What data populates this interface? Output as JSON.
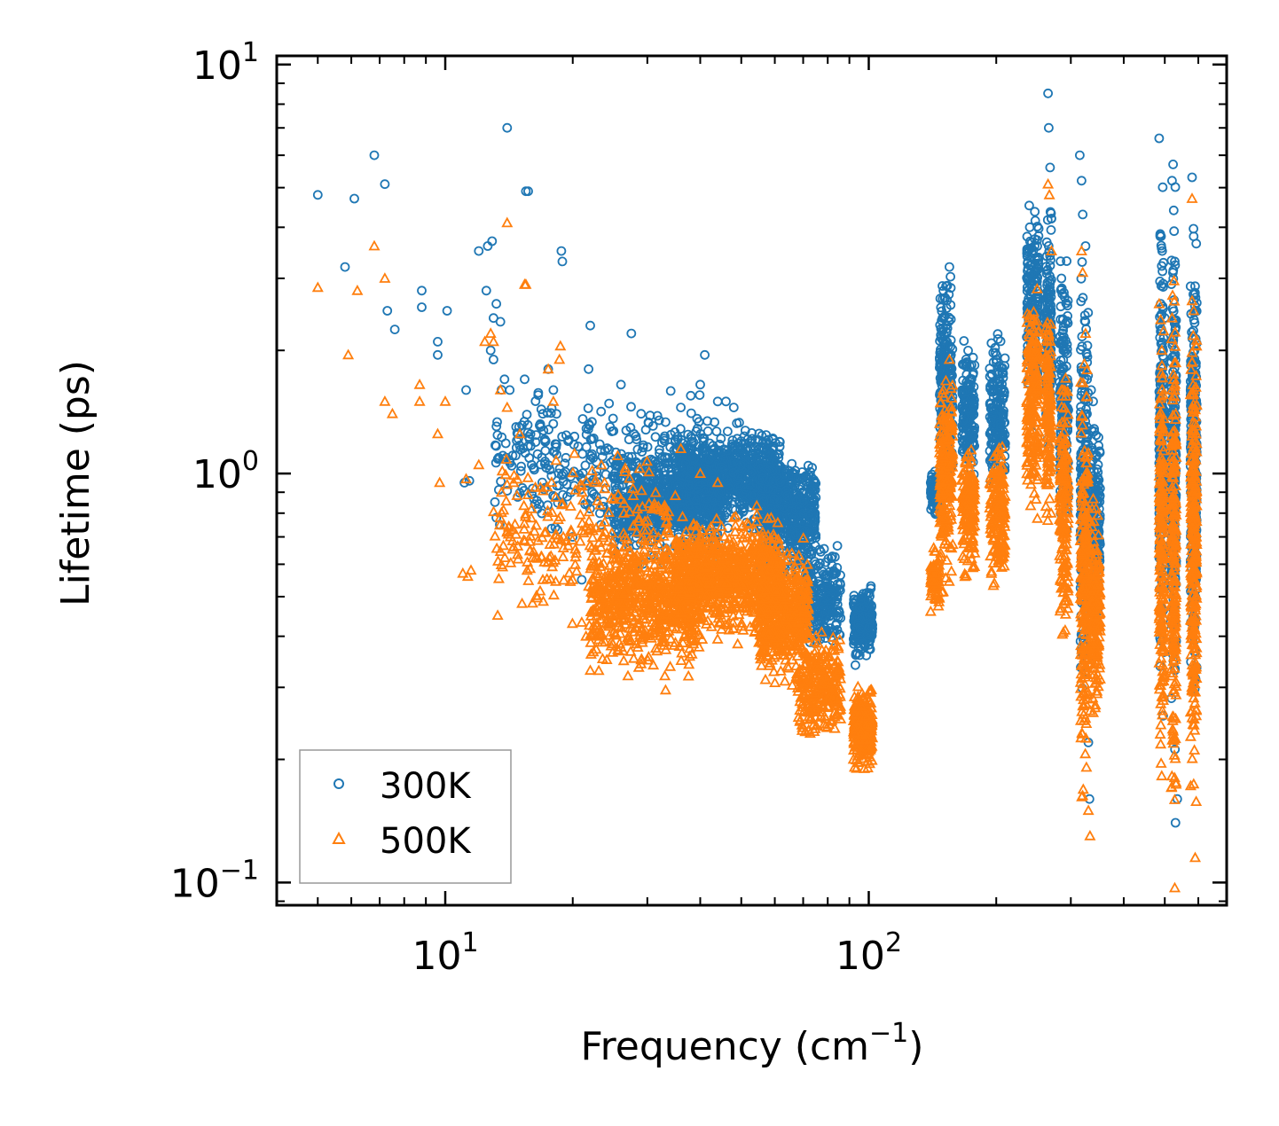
{
  "chart_data": {
    "type": "scatter",
    "xscale": "log",
    "yscale": "log",
    "xlim": [
      4,
      700
    ],
    "ylim": [
      0.088,
      10.5
    ],
    "xlabel_base": "Frequency (cm",
    "xlabel_sup": "−1",
    "xlabel_end": ")",
    "ylabel": "Lifetime (ps)",
    "x_ticks": [
      {
        "value": 10,
        "base": "10",
        "exp": "1"
      },
      {
        "value": 100,
        "base": "10",
        "exp": "2"
      }
    ],
    "y_ticks": [
      {
        "value": 0.1,
        "base": "10",
        "exp": "−1"
      },
      {
        "value": 1,
        "base": "10",
        "exp": "0"
      },
      {
        "value": 10,
        "base": "10",
        "exp": "1"
      }
    ],
    "legend_position": "lower-left",
    "series": [
      {
        "name": "300K",
        "marker": "circle",
        "color": "#1f77b4",
        "points": [
          [
            5.0,
            4.8
          ],
          [
            5.8,
            3.2
          ],
          [
            6.1,
            4.7
          ],
          [
            6.8,
            6.0
          ],
          [
            7.2,
            5.1
          ],
          [
            7.3,
            2.5
          ],
          [
            7.6,
            2.25
          ],
          [
            8.8,
            2.8
          ],
          [
            8.8,
            2.55
          ],
          [
            10.1,
            2.5
          ],
          [
            9.6,
            2.1
          ],
          [
            9.6,
            1.95
          ],
          [
            11.1,
            0.95
          ],
          [
            11.4,
            0.96
          ],
          [
            11.2,
            1.6
          ],
          [
            12.0,
            3.5
          ],
          [
            12.6,
            3.6
          ],
          [
            12.9,
            3.7
          ],
          [
            12.5,
            2.8
          ],
          [
            13.2,
            2.6
          ],
          [
            13.0,
            2.4
          ],
          [
            13.5,
            2.35
          ],
          [
            12.8,
            2.0
          ],
          [
            13.0,
            1.9
          ],
          [
            13.8,
            1.7
          ],
          [
            14.0,
            7.0
          ],
          [
            14.2,
            1.6
          ],
          [
            14.7,
            1.3
          ],
          [
            13.2,
            0.78
          ],
          [
            15.5,
            4.9
          ],
          [
            15.7,
            4.9
          ],
          [
            15.4,
            1.7
          ],
          [
            16.8,
            1.3
          ],
          [
            16.0,
            1.05
          ],
          [
            16.5,
            0.82
          ],
          [
            17.0,
            1.4
          ],
          [
            17.5,
            1.8
          ],
          [
            18.8,
            3.5
          ],
          [
            18.9,
            3.3
          ],
          [
            18.0,
            1.6
          ],
          [
            19.5,
            1.2
          ],
          [
            19.0,
            1.0
          ],
          [
            20.0,
            0.7
          ],
          [
            21.0,
            0.55
          ],
          [
            21.8,
            1.8
          ],
          [
            22.0,
            2.3
          ],
          [
            23.5,
            1.1
          ],
          [
            24.5,
            1.3
          ],
          [
            26.0,
            1.65
          ],
          [
            27.5,
            2.2
          ],
          [
            29.0,
            1.4
          ],
          [
            32.0,
            1.35
          ],
          [
            36.0,
            1.45
          ],
          [
            38.0,
            1.55
          ],
          [
            40.0,
            1.65
          ],
          [
            41.0,
            1.95
          ],
          [
            44.0,
            1.5
          ],
          [
            46.0,
            1.5
          ],
          [
            48.0,
            1.45
          ],
          [
            50.0,
            1.2
          ],
          [
            55.0,
            1.15
          ],
          [
            60.0,
            1.1
          ],
          [
            64.0,
            1.0
          ],
          [
            66.0,
            0.98
          ],
          [
            70.0,
            0.8
          ],
          [
            75.0,
            0.6
          ],
          [
            80.0,
            0.5
          ],
          [
            84.0,
            0.43
          ],
          [
            93.0,
            0.34
          ],
          [
            96.0,
            0.5
          ],
          [
            100.0,
            0.42
          ],
          [
            140.0,
            0.95
          ],
          [
            150.0,
            2.8
          ],
          [
            155.0,
            3.2
          ],
          [
            170.0,
            1.85
          ],
          [
            200.0,
            1.9
          ],
          [
            205.0,
            1.3
          ],
          [
            240.0,
            4.0
          ],
          [
            250.0,
            3.6
          ],
          [
            265.0,
            8.5
          ],
          [
            266.0,
            7.0
          ],
          [
            268.0,
            5.6
          ],
          [
            270.0,
            4.2
          ],
          [
            285.0,
            3.0
          ],
          [
            290.0,
            2.7
          ],
          [
            295.0,
            1.6
          ],
          [
            315.0,
            6.0
          ],
          [
            318.0,
            5.2
          ],
          [
            320.0,
            4.3
          ],
          [
            325.0,
            3.6
          ],
          [
            330.0,
            0.22
          ],
          [
            332.0,
            0.16
          ],
          [
            335.0,
            1.6
          ],
          [
            340.0,
            0.85
          ],
          [
            345.0,
            1.1
          ],
          [
            485.0,
            6.6
          ],
          [
            490.0,
            3.8
          ],
          [
            493.0,
            3.5
          ],
          [
            500.0,
            2.4
          ],
          [
            520.0,
            5.2
          ],
          [
            523.0,
            5.7
          ],
          [
            525.0,
            4.4
          ],
          [
            528.0,
            3.3
          ],
          [
            530.0,
            0.14
          ],
          [
            535.0,
            0.16
          ],
          [
            580.0,
            5.3
          ],
          [
            585.0,
            3.8
          ],
          [
            590.0,
            2.5
          ]
        ],
        "clusters": [
          {
            "x_range": [
              13,
              40
            ],
            "y_center": 1.05,
            "y_spread": 1.45,
            "count": 320
          },
          {
            "x_range": [
              25,
              45
            ],
            "y_center": 0.85,
            "y_spread": 1.3,
            "count": 700
          },
          {
            "x_range": [
              35,
              62
            ],
            "y_center": 0.98,
            "y_spread": 1.25,
            "count": 900
          },
          {
            "x_range": [
              55,
              75
            ],
            "y_center": 0.8,
            "y_spread": 1.3,
            "count": 500
          },
          {
            "x_range": [
              70,
              86
            ],
            "y_center": 0.5,
            "y_spread": 1.25,
            "count": 250
          },
          {
            "x_range": [
              92,
              102
            ],
            "y_center": 0.43,
            "y_spread": 1.17,
            "count": 260
          },
          {
            "x_range": [
              140,
              147
            ],
            "y_center": 0.9,
            "y_spread": 1.12,
            "count": 80
          },
          {
            "x_range": [
              147,
              158
            ],
            "y_center": 1.7,
            "y_spread": 1.6,
            "count": 240
          },
          {
            "x_range": [
              166,
              178
            ],
            "y_center": 1.4,
            "y_spread": 1.35,
            "count": 160
          },
          {
            "x_range": [
              193,
              210
            ],
            "y_center": 1.4,
            "y_spread": 1.4,
            "count": 180
          },
          {
            "x_range": [
              236,
              252
            ],
            "y_center": 2.5,
            "y_spread": 1.6,
            "count": 200
          },
          {
            "x_range": [
              262,
              270
            ],
            "y_center": 2.3,
            "y_spread": 1.7,
            "count": 140
          },
          {
            "x_range": [
              282,
              296
            ],
            "y_center": 1.4,
            "y_spread": 1.9,
            "count": 180
          },
          {
            "x_range": [
              316,
              330
            ],
            "y_center": 0.9,
            "y_spread": 2.6,
            "count": 220
          },
          {
            "x_range": [
              333,
              352
            ],
            "y_center": 0.75,
            "y_spread": 1.6,
            "count": 200
          },
          {
            "x_range": [
              485,
              498
            ],
            "y_center": 1.1,
            "y_spread": 2.8,
            "count": 220
          },
          {
            "x_range": [
              518,
              532
            ],
            "y_center": 1.0,
            "y_spread": 3.0,
            "count": 220
          },
          {
            "x_range": [
              575,
              595
            ],
            "y_center": 1.1,
            "y_spread": 3.0,
            "count": 300
          }
        ]
      },
      {
        "name": "500K",
        "marker": "triangle",
        "color": "#ff7f0e",
        "points": [
          [
            5.0,
            2.85
          ],
          [
            5.9,
            1.95
          ],
          [
            6.2,
            2.8
          ],
          [
            6.8,
            3.6
          ],
          [
            7.2,
            1.5
          ],
          [
            7.2,
            3.0
          ],
          [
            7.5,
            1.4
          ],
          [
            8.7,
            1.65
          ],
          [
            8.7,
            1.5
          ],
          [
            9.6,
            1.25
          ],
          [
            9.7,
            0.95
          ],
          [
            10.0,
            1.5
          ],
          [
            11.0,
            0.57
          ],
          [
            11.3,
            0.56
          ],
          [
            11.5,
            0.58
          ],
          [
            11.2,
            0.97
          ],
          [
            12.0,
            1.05
          ],
          [
            12.4,
            2.1
          ],
          [
            12.8,
            2.2
          ],
          [
            13.0,
            2.1
          ],
          [
            13.5,
            1.6
          ],
          [
            14.0,
            4.1
          ],
          [
            14.0,
            1.45
          ],
          [
            13.3,
            0.45
          ],
          [
            15.4,
            2.9
          ],
          [
            15.5,
            2.9
          ],
          [
            14.5,
            0.95
          ],
          [
            15.0,
            1.25
          ],
          [
            16.5,
            0.62
          ],
          [
            16.0,
            0.82
          ],
          [
            17.0,
            0.55
          ],
          [
            17.5,
            1.8
          ],
          [
            18.7,
            2.05
          ],
          [
            18.6,
            1.9
          ],
          [
            18.0,
            1.5
          ],
          [
            19.0,
            0.7
          ],
          [
            20.0,
            0.55
          ],
          [
            21.5,
            0.4
          ],
          [
            22.0,
            0.33
          ],
          [
            24.0,
            0.43
          ],
          [
            26.0,
            0.42
          ],
          [
            27.0,
            0.32
          ],
          [
            29.0,
            0.35
          ],
          [
            31.0,
            0.34
          ],
          [
            33.0,
            0.32
          ],
          [
            36.0,
            1.15
          ],
          [
            40.0,
            1.0
          ],
          [
            44.0,
            0.95
          ],
          [
            48.0,
            0.78
          ],
          [
            52.0,
            0.75
          ],
          [
            56.0,
            0.7
          ],
          [
            62.0,
            0.6
          ],
          [
            68.0,
            0.55
          ],
          [
            75.0,
            0.4
          ],
          [
            80.0,
            0.28
          ],
          [
            83.0,
            0.26
          ],
          [
            92.0,
            0.2
          ],
          [
            96.0,
            0.27
          ],
          [
            100.0,
            0.21
          ],
          [
            140.0,
            0.46
          ],
          [
            150.0,
            1.6
          ],
          [
            155.0,
            1.9
          ],
          [
            170.0,
            1.1
          ],
          [
            200.0,
            1.0
          ],
          [
            240.0,
            2.4
          ],
          [
            250.0,
            1.9
          ],
          [
            265.0,
            5.1
          ],
          [
            267.0,
            4.8
          ],
          [
            270.0,
            3.5
          ],
          [
            285.0,
            1.6
          ],
          [
            292.0,
            1.0
          ],
          [
            318.0,
            3.5
          ],
          [
            320.0,
            3.1
          ],
          [
            325.0,
            2.2
          ],
          [
            330.0,
            0.15
          ],
          [
            333.0,
            0.13
          ],
          [
            340.0,
            0.55
          ],
          [
            485.0,
            2.6
          ],
          [
            492.0,
            2.0
          ],
          [
            520.0,
            2.4
          ],
          [
            525.0,
            1.55
          ],
          [
            528.0,
            0.097
          ],
          [
            580.0,
            4.7
          ],
          [
            585.0,
            2.5
          ],
          [
            590.0,
            0.115
          ]
        ],
        "clusters": [
          {
            "x_range": [
              13,
              35
            ],
            "y_center": 0.72,
            "y_spread": 1.5,
            "count": 280
          },
          {
            "x_range": [
              22,
              40
            ],
            "y_center": 0.48,
            "y_spread": 1.35,
            "count": 650
          },
          {
            "x_range": [
              35,
              62
            ],
            "y_center": 0.56,
            "y_spread": 1.3,
            "count": 900
          },
          {
            "x_range": [
              55,
              72
            ],
            "y_center": 0.45,
            "y_spread": 1.35,
            "count": 500
          },
          {
            "x_range": [
              68,
              86
            ],
            "y_center": 0.3,
            "y_spread": 1.25,
            "count": 260
          },
          {
            "x_range": [
              92,
              102
            ],
            "y_center": 0.24,
            "y_spread": 1.2,
            "count": 260
          },
          {
            "x_range": [
              140,
              147
            ],
            "y_center": 0.55,
            "y_spread": 1.15,
            "count": 80
          },
          {
            "x_range": [
              147,
              158
            ],
            "y_center": 1.0,
            "y_spread": 1.6,
            "count": 240
          },
          {
            "x_range": [
              166,
              178
            ],
            "y_center": 0.82,
            "y_spread": 1.35,
            "count": 160
          },
          {
            "x_range": [
              193,
              210
            ],
            "y_center": 0.8,
            "y_spread": 1.4,
            "count": 180
          },
          {
            "x_range": [
              236,
              252
            ],
            "y_center": 1.5,
            "y_spread": 1.6,
            "count": 200
          },
          {
            "x_range": [
              262,
              270
            ],
            "y_center": 1.4,
            "y_spread": 1.7,
            "count": 140
          },
          {
            "x_range": [
              282,
              296
            ],
            "y_center": 0.8,
            "y_spread": 1.9,
            "count": 180
          },
          {
            "x_range": [
              316,
              330
            ],
            "y_center": 0.55,
            "y_spread": 2.6,
            "count": 220
          },
          {
            "x_range": [
              333,
              352
            ],
            "y_center": 0.45,
            "y_spread": 1.6,
            "count": 200
          },
          {
            "x_range": [
              485,
              498
            ],
            "y_center": 0.65,
            "y_spread": 2.8,
            "count": 220
          },
          {
            "x_range": [
              518,
              532
            ],
            "y_center": 0.6,
            "y_spread": 3.0,
            "count": 220
          },
          {
            "x_range": [
              575,
              595
            ],
            "y_center": 0.65,
            "y_spread": 3.0,
            "count": 300
          }
        ]
      }
    ]
  },
  "legend": [
    {
      "label": "300K",
      "marker": "circle",
      "color": "#1f77b4"
    },
    {
      "label": "500K",
      "marker": "triangle",
      "color": "#ff7f0e"
    }
  ]
}
